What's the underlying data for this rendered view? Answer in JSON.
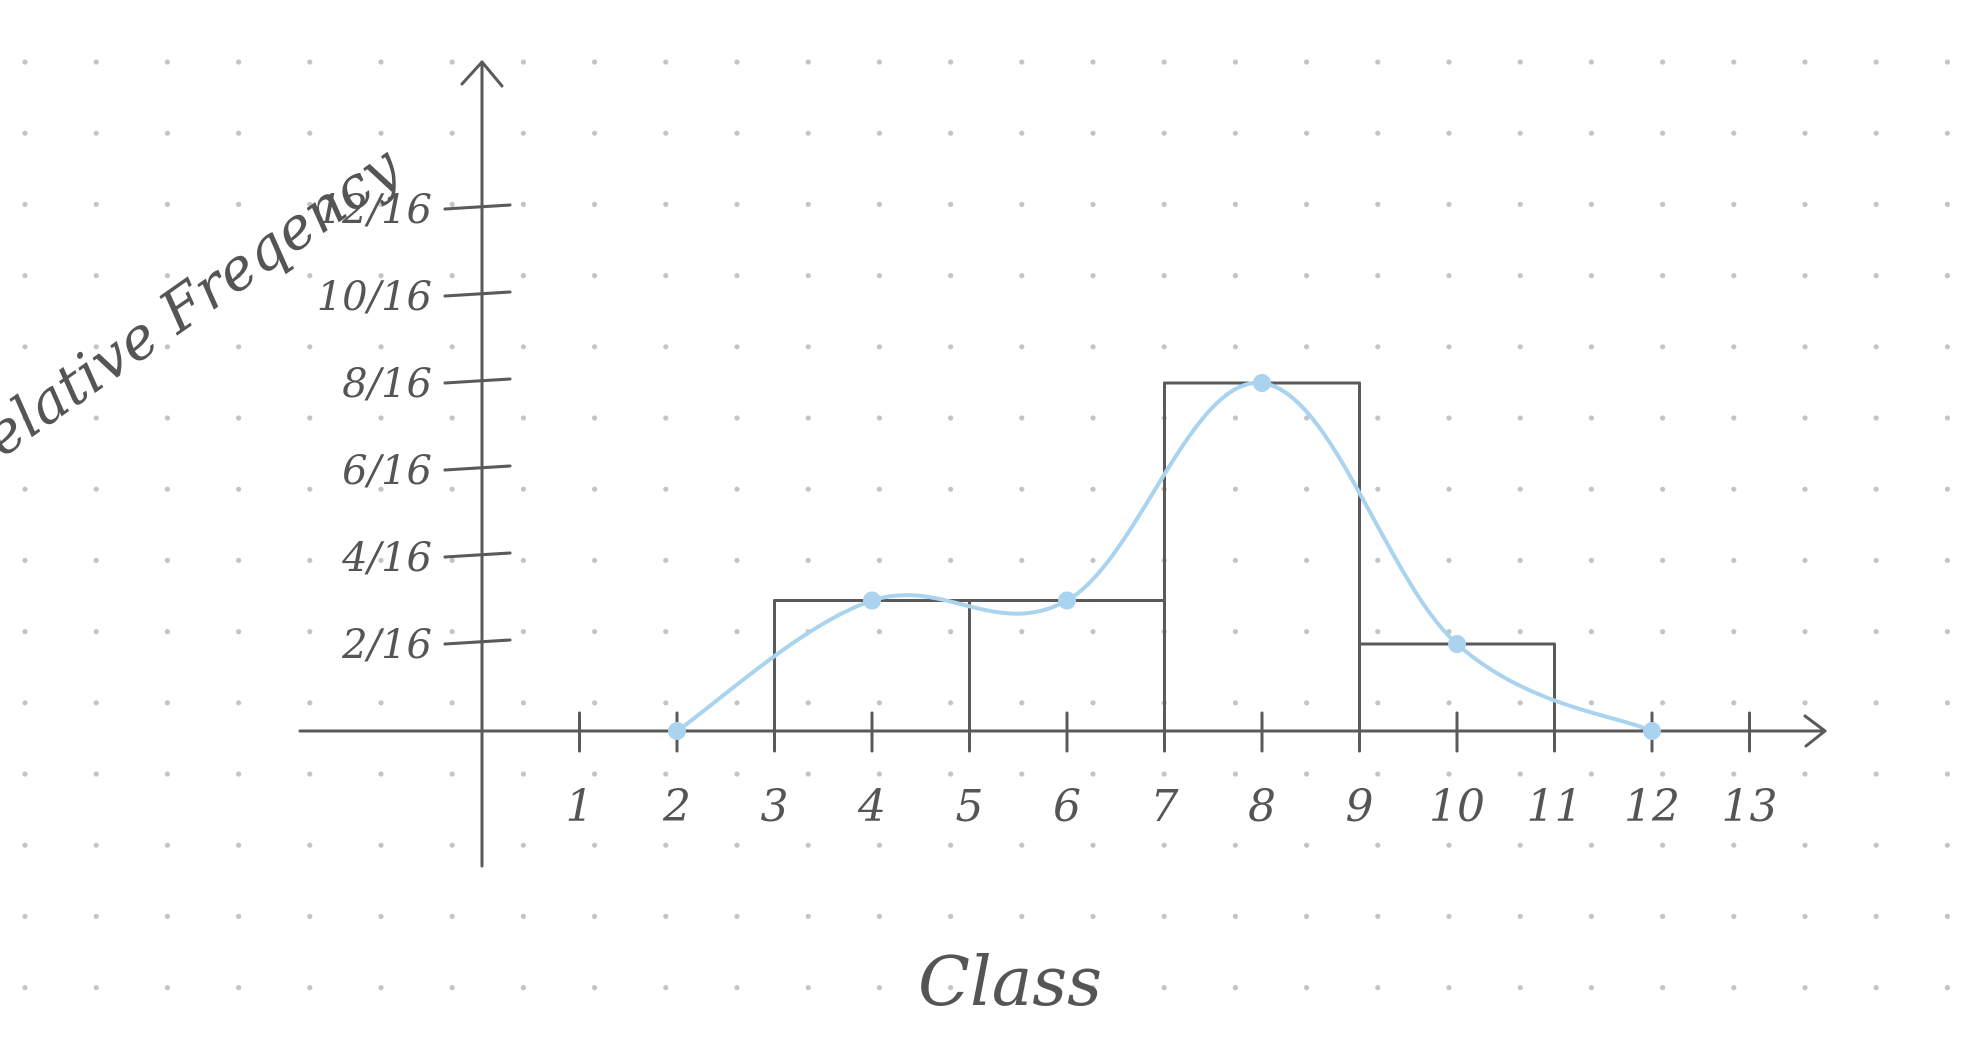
{
  "chart_data": {
    "type": "bar",
    "xlabel": "Class",
    "ylabel": "Relative Freqency",
    "x_ticks": [
      "1",
      "2",
      "3",
      "4",
      "5",
      "6",
      "7",
      "8",
      "9",
      "10",
      "11",
      "12",
      "13"
    ],
    "y_ticks": [
      "2/16",
      "4/16",
      "6/16",
      "8/16",
      "10/16",
      "12/16"
    ],
    "bars": [
      {
        "x_start": 3,
        "x_end": 5,
        "value": 3
      },
      {
        "x_start": 5,
        "x_end": 7,
        "value": 3
      },
      {
        "x_start": 7,
        "x_end": 9,
        "value": 8
      },
      {
        "x_start": 9,
        "x_end": 11,
        "value": 2
      }
    ],
    "polygon": {
      "x": [
        2,
        4,
        6,
        8,
        10,
        12
      ],
      "y": [
        0,
        3,
        3,
        8,
        2,
        0
      ]
    },
    "y_unit_denominator": 16,
    "ylim": [
      0,
      13
    ],
    "xlim": [
      0,
      14
    ],
    "grid": "dotted",
    "colors": {
      "axis": "#5a5a5a",
      "polygon": "#a9d3ef",
      "grid_dot": "#c4c4c4"
    }
  }
}
